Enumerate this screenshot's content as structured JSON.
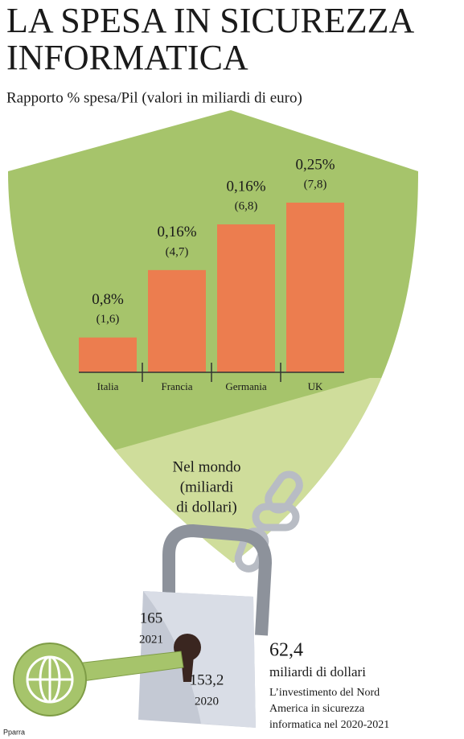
{
  "chart_data": {
    "type": "bar",
    "title": [
      "LA SPESA IN SICUREZZA",
      "INFORMATICA"
    ],
    "subtitle": "Rapporto % spesa/Pil (valori in miliardi di euro)",
    "categories": [
      "Italia",
      "Francia",
      "Germania",
      "UK"
    ],
    "values": [
      1.6,
      4.7,
      6.8,
      7.8
    ],
    "value_labels": [
      "(1,6)",
      "(4,7)",
      "(6,8)",
      "(7,8)"
    ],
    "pct_values": [
      0.8,
      0.16,
      0.16,
      0.25
    ],
    "pct_labels": [
      "0,8%",
      "0,16%",
      "0,16%",
      "0,25%"
    ],
    "color": "#ec7d4f"
  },
  "world": {
    "label": [
      "Nel mondo",
      "(miliardi",
      "di dollari)"
    ],
    "items": [
      {
        "value": "165",
        "year": "2021"
      },
      {
        "value": "153,2",
        "year": "2020"
      }
    ],
    "north_america": {
      "value": "62,4",
      "unit": "miliardi di dollari",
      "description": [
        "L’investimento del Nord",
        "America in sicurezza",
        "informatica nel 2020-2021"
      ]
    }
  },
  "credit": "Pparra"
}
